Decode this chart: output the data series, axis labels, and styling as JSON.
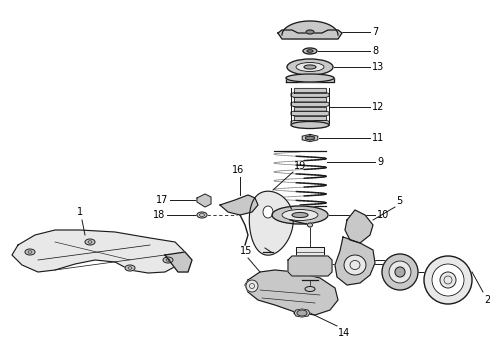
{
  "bg_color": "#ffffff",
  "line_color": "#1a1a1a",
  "label_color": "#000000",
  "figsize": [
    4.9,
    3.6
  ],
  "dpi": 100,
  "lw": 0.9,
  "gray_fill": "#c8c8c8",
  "light_fill": "#e8e8e8"
}
